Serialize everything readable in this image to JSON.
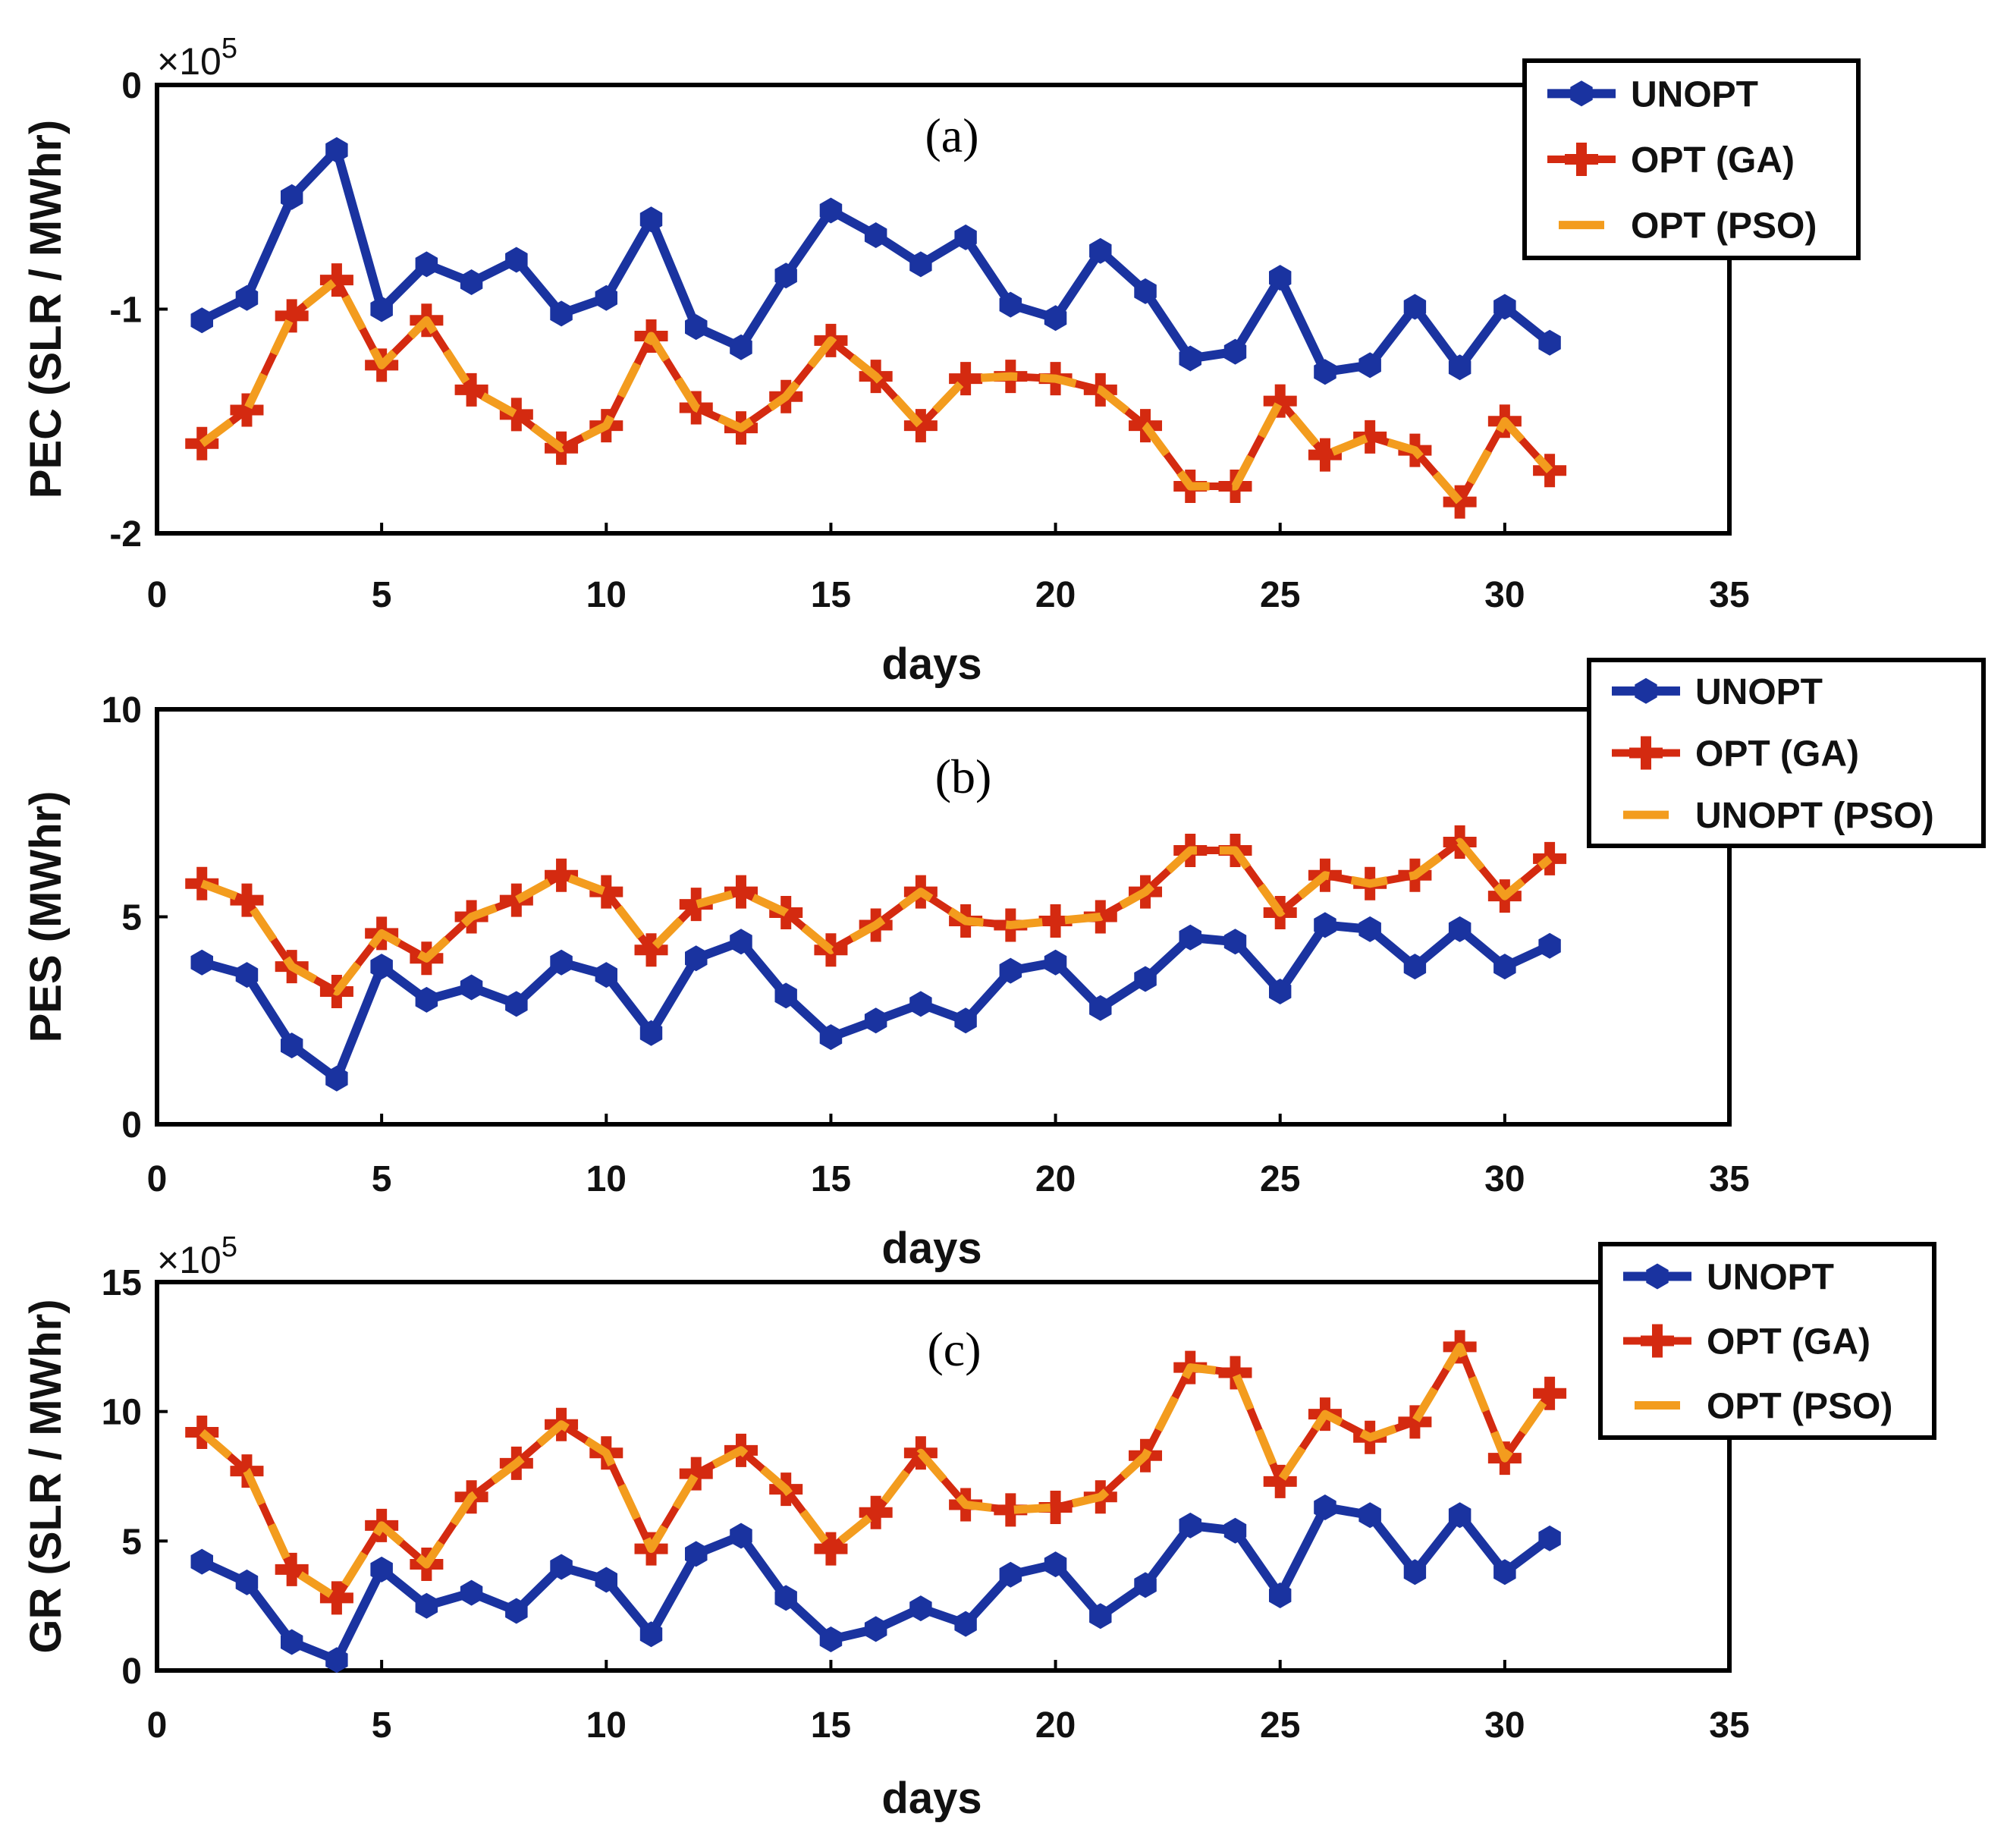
{
  "chart_data": [
    {
      "type": "line",
      "panel_label": "(a)",
      "title": "",
      "xlabel": "days",
      "ylabel": "PEC (SLR / MWhr)",
      "exponent": "×10",
      "exponent_power": "5",
      "xlim": [
        0,
        35
      ],
      "ylim": [
        -2,
        0
      ],
      "xticks": [
        "0",
        "5",
        "10",
        "15",
        "20",
        "25",
        "30",
        "35"
      ],
      "yticks": [
        "0",
        "-1",
        "-2"
      ],
      "yticks_values": [
        0,
        -1,
        -2
      ],
      "x": [
        1,
        2,
        3,
        4,
        5,
        6,
        7,
        8,
        9,
        10,
        11,
        12,
        13,
        14,
        15,
        16,
        17,
        18,
        19,
        20,
        21,
        22,
        23,
        24,
        25,
        26,
        27,
        28,
        29,
        30,
        31
      ],
      "series": [
        {
          "name": "UNOPT",
          "color": "#1a33a0",
          "values": [
            -1.05,
            -0.95,
            -0.5,
            -0.29,
            -1.0,
            -0.8,
            -0.88,
            -0.78,
            -1.02,
            -0.95,
            -0.6,
            -1.08,
            -1.17,
            -0.85,
            -0.56,
            -0.67,
            -0.8,
            -0.68,
            -0.98,
            -1.04,
            -0.74,
            -0.92,
            -1.22,
            -1.19,
            -0.86,
            -1.28,
            -1.25,
            -0.99,
            -1.26,
            -0.99,
            -1.15
          ]
        },
        {
          "name": "OPT (GA)",
          "color": "#d42a10",
          "values": [
            -1.6,
            -1.45,
            -1.03,
            -0.87,
            -1.25,
            -1.05,
            -1.36,
            -1.47,
            -1.62,
            -1.52,
            -1.12,
            -1.44,
            -1.53,
            -1.39,
            -1.14,
            -1.3,
            -1.52,
            -1.31,
            -1.3,
            -1.31,
            -1.36,
            -1.52,
            -1.79,
            -1.79,
            -1.41,
            -1.65,
            -1.57,
            -1.63,
            -1.86,
            -1.5,
            -1.72
          ]
        },
        {
          "name": "OPT (PSO)",
          "color": "#f39c1e",
          "values": [
            -1.6,
            -1.45,
            -1.03,
            -0.87,
            -1.25,
            -1.05,
            -1.36,
            -1.47,
            -1.62,
            -1.52,
            -1.12,
            -1.44,
            -1.53,
            -1.39,
            -1.14,
            -1.3,
            -1.52,
            -1.31,
            -1.3,
            -1.31,
            -1.36,
            -1.52,
            -1.79,
            -1.79,
            -1.41,
            -1.65,
            -1.57,
            -1.63,
            -1.86,
            -1.5,
            -1.72
          ]
        }
      ],
      "legend": "top-right"
    },
    {
      "type": "line",
      "panel_label": "(b)",
      "title": "",
      "xlabel": "days",
      "ylabel": "PES (MWhr)",
      "exponent": "",
      "exponent_power": "",
      "xlim": [
        0,
        35
      ],
      "ylim": [
        0,
        10
      ],
      "xticks": [
        "0",
        "5",
        "10",
        "15",
        "20",
        "25",
        "30",
        "35"
      ],
      "yticks": [
        "10",
        "5",
        "0"
      ],
      "yticks_values": [
        10,
        5,
        0
      ],
      "x": [
        1,
        2,
        3,
        4,
        5,
        6,
        7,
        8,
        9,
        10,
        11,
        12,
        13,
        14,
        15,
        16,
        17,
        18,
        19,
        20,
        21,
        22,
        23,
        24,
        25,
        26,
        27,
        28,
        29,
        30,
        31
      ],
      "series": [
        {
          "name": "UNOPT",
          "color": "#1a33a0",
          "values": [
            3.9,
            3.6,
            1.9,
            1.1,
            3.8,
            3.0,
            3.3,
            2.9,
            3.9,
            3.6,
            2.2,
            4.0,
            4.4,
            3.1,
            2.1,
            2.5,
            2.9,
            2.5,
            3.7,
            3.9,
            2.8,
            3.5,
            4.5,
            4.4,
            3.2,
            4.8,
            4.7,
            3.8,
            4.7,
            3.8,
            4.3
          ]
        },
        {
          "name": "OPT (GA)",
          "color": "#d42a10",
          "values": [
            5.8,
            5.4,
            3.8,
            3.2,
            4.6,
            4.0,
            5.0,
            5.4,
            6.0,
            5.6,
            4.2,
            5.3,
            5.6,
            5.1,
            4.2,
            4.8,
            5.6,
            4.9,
            4.8,
            4.9,
            5.0,
            5.6,
            6.6,
            6.6,
            5.1,
            6.0,
            5.8,
            6.0,
            6.8,
            5.5,
            6.4
          ]
        },
        {
          "name": "UNOPT (PSO)",
          "color": "#f39c1e",
          "values": [
            5.8,
            5.4,
            3.8,
            3.2,
            4.6,
            4.0,
            5.0,
            5.4,
            6.0,
            5.6,
            4.2,
            5.3,
            5.6,
            5.1,
            4.2,
            4.8,
            5.6,
            4.9,
            4.8,
            4.9,
            5.0,
            5.6,
            6.6,
            6.6,
            5.1,
            6.0,
            5.8,
            6.0,
            6.8,
            5.5,
            6.4
          ]
        }
      ],
      "legend": "top-right"
    },
    {
      "type": "line",
      "panel_label": "(c)",
      "title": "",
      "xlabel": "days",
      "ylabel": "GR (SLR / MWhr)",
      "exponent": "×10",
      "exponent_power": "5",
      "xlim": [
        0,
        35
      ],
      "ylim": [
        0,
        15
      ],
      "xticks": [
        "0",
        "5",
        "10",
        "15",
        "20",
        "25",
        "30",
        "35"
      ],
      "yticks": [
        "15",
        "10",
        "5",
        "0"
      ],
      "yticks_values": [
        15,
        10,
        5,
        0
      ],
      "x": [
        1,
        2,
        3,
        4,
        5,
        6,
        7,
        8,
        9,
        10,
        11,
        12,
        13,
        14,
        15,
        16,
        17,
        18,
        19,
        20,
        21,
        22,
        23,
        24,
        25,
        26,
        27,
        28,
        29,
        30,
        31
      ],
      "series": [
        {
          "name": "UNOPT",
          "color": "#1a33a0",
          "values": [
            4.2,
            3.4,
            1.1,
            0.4,
            3.9,
            2.5,
            3.0,
            2.3,
            4.0,
            3.5,
            1.4,
            4.5,
            5.2,
            2.8,
            1.2,
            1.6,
            2.4,
            1.8,
            3.7,
            4.1,
            2.1,
            3.3,
            5.6,
            5.4,
            2.9,
            6.3,
            6.0,
            3.8,
            6.0,
            3.8,
            5.1
          ]
        },
        {
          "name": "OPT (GA)",
          "color": "#d42a10",
          "values": [
            9.2,
            7.7,
            3.9,
            2.8,
            5.6,
            4.1,
            6.7,
            8.0,
            9.5,
            8.4,
            4.7,
            7.6,
            8.5,
            7.0,
            4.7,
            6.1,
            8.4,
            6.4,
            6.2,
            6.3,
            6.7,
            8.3,
            11.7,
            11.5,
            7.3,
            9.9,
            9.0,
            9.6,
            12.5,
            8.2,
            10.7
          ]
        },
        {
          "name": "OPT (PSO)",
          "color": "#f39c1e",
          "values": [
            9.2,
            7.7,
            3.9,
            2.8,
            5.6,
            4.1,
            6.7,
            8.0,
            9.5,
            8.4,
            4.7,
            7.6,
            8.5,
            7.0,
            4.7,
            6.1,
            8.4,
            6.4,
            6.2,
            6.3,
            6.7,
            8.3,
            11.7,
            11.5,
            7.3,
            9.9,
            9.0,
            9.6,
            12.5,
            8.2,
            10.7
          ]
        }
      ],
      "legend": "top-right"
    }
  ]
}
